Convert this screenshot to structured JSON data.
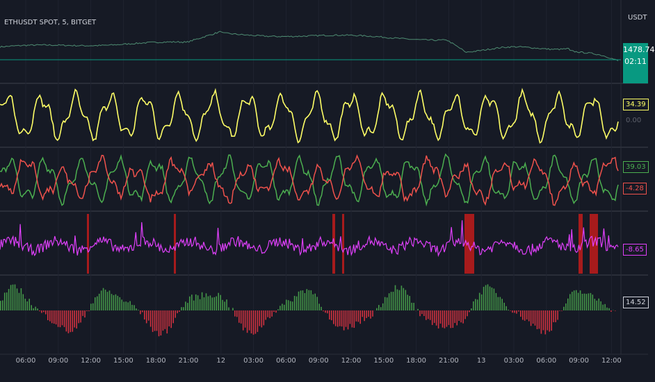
{
  "header": {
    "symbol_label": "ETHUSDT SPOT, 5, BITGET",
    "currency": "USDT"
  },
  "price_axis": {
    "last_price": "1478.74",
    "countdown": "02:11",
    "hidden_value": "0.00"
  },
  "panes": [
    {
      "name": "price-pane",
      "color": "#4e8c72"
    },
    {
      "name": "yellow-oscillator",
      "value": "34.39",
      "color": "#ffff66"
    },
    {
      "name": "green-red-oscillator",
      "values": [
        "39.03",
        "-4.28"
      ],
      "colors": [
        "#4caf50",
        "#f0524c"
      ]
    },
    {
      "name": "magenta-oscillator",
      "value": "-8.65",
      "color": "#e040fb",
      "highlight_color": "#b71c1c"
    },
    {
      "name": "histogram",
      "value": "14.52",
      "pos_color": "#4caf50",
      "neg_color": "#f23645"
    }
  ],
  "time_axis": [
    "06:00",
    "09:00",
    "12:00",
    "15:00",
    "18:00",
    "21:00",
    "12",
    "03:00",
    "06:00",
    "09:00",
    "12:00",
    "15:00",
    "18:00",
    "21:00",
    "13",
    "03:00",
    "06:00",
    "09:00",
    "12:00"
  ],
  "chart_data": [
    {
      "type": "line",
      "series": [
        {
          "name": "ETHUSDT SPOT",
          "last": 1478.74
        }
      ]
    },
    {
      "type": "line",
      "series": [
        {
          "last": 34.39
        }
      ]
    },
    {
      "type": "line",
      "series": [
        {
          "last": 39.03
        },
        {
          "last": -4.28
        }
      ]
    },
    {
      "type": "line",
      "series": [
        {
          "last": -8.65
        }
      ]
    },
    {
      "type": "bar",
      "series": [
        {
          "last": 14.52
        }
      ]
    }
  ]
}
